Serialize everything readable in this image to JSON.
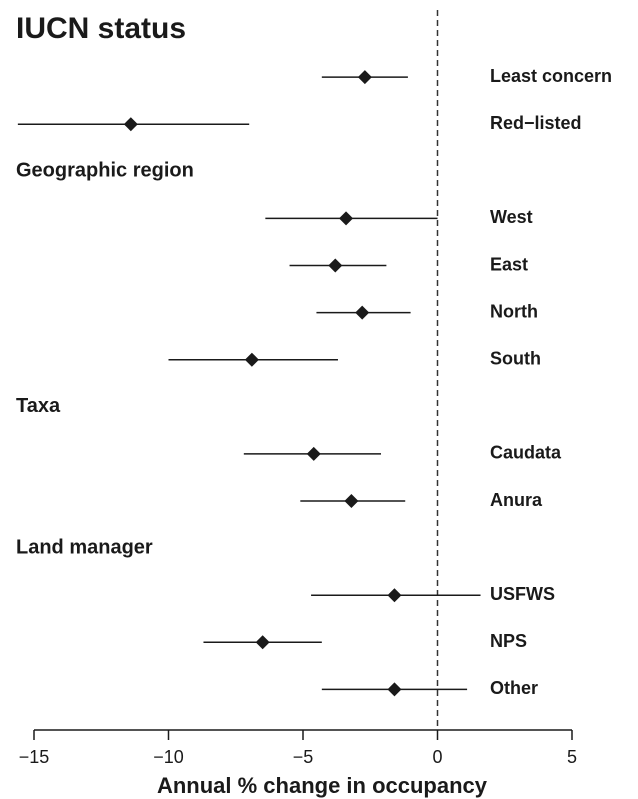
{
  "chart_data": {
    "type": "forest",
    "xlabel": "Annual % change in occupancy",
    "xlim": [
      -15,
      5
    ],
    "xticks": [
      {
        "value": -15,
        "label": "−15"
      },
      {
        "value": -10,
        "label": "−10"
      },
      {
        "value": -5,
        "label": "−5"
      },
      0,
      5
    ],
    "reference_line": 0,
    "color": "#1a1a1a",
    "groups": [
      {
        "title": "IUCN status",
        "items": [
          {
            "label": "Least concern",
            "value": -2.7,
            "lower": -4.3,
            "upper": -1.1
          },
          {
            "label": "Red−listed",
            "value": -11.4,
            "lower": -15.6,
            "upper": -7.0
          }
        ]
      },
      {
        "title": "Geographic region",
        "items": [
          {
            "label": "West",
            "value": -3.4,
            "lower": -6.4,
            "upper": 0
          },
          {
            "label": "East",
            "value": -3.8,
            "lower": -5.5,
            "upper": -1.9
          },
          {
            "label": "North",
            "value": -2.8,
            "lower": -4.5,
            "upper": -1.0
          },
          {
            "label": "South",
            "value": -6.9,
            "lower": -10.0,
            "upper": -3.7
          }
        ]
      },
      {
        "title": "Taxa",
        "items": [
          {
            "label": "Caudata",
            "value": -4.6,
            "lower": -7.2,
            "upper": -2.1
          },
          {
            "label": "Anura",
            "value": -3.2,
            "lower": -5.1,
            "upper": -1.2
          }
        ]
      },
      {
        "title": "Land manager",
        "items": [
          {
            "label": "USFWS",
            "value": -1.6,
            "lower": -4.7,
            "upper": 1.6
          },
          {
            "label": "NPS",
            "value": -6.5,
            "lower": -8.7,
            "upper": -4.3
          },
          {
            "label": "Other",
            "value": -1.6,
            "lower": -4.3,
            "upper": 1.1
          }
        ]
      }
    ]
  }
}
